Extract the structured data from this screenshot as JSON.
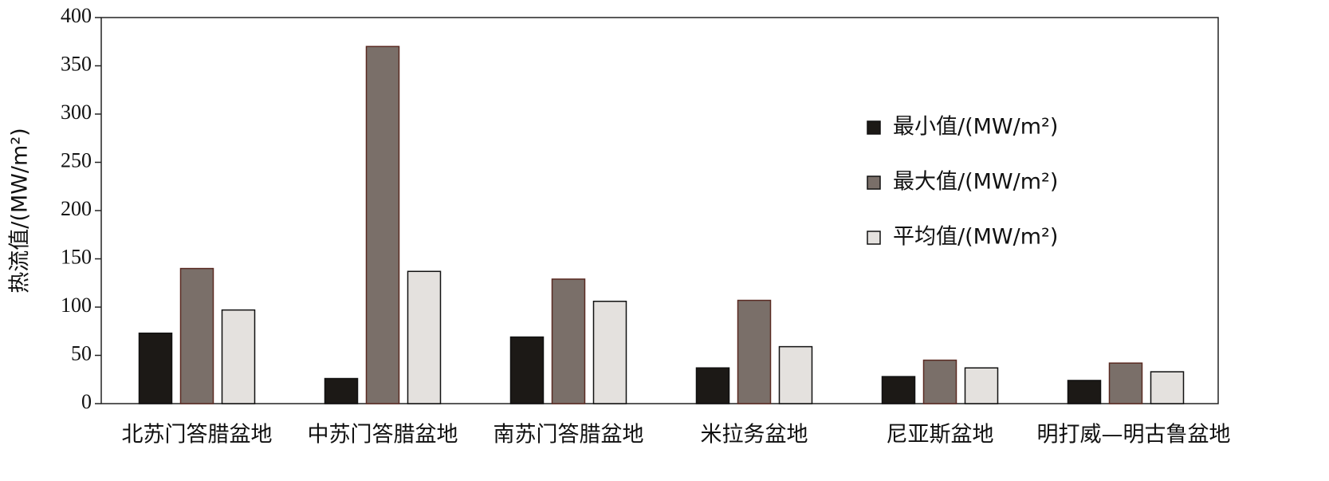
{
  "chart_data": {
    "type": "bar",
    "y_label": "热流值/(MW/m²)",
    "categories": [
      "北苏门答腊盆地",
      "中苏门答腊盆地",
      "南苏门答腊盆地",
      "米拉务盆地",
      "尼亚斯盆地",
      "明打威—明古鲁盆地"
    ],
    "series": [
      {
        "name": "最小值/(MW/m²)",
        "color": "#1c1916",
        "values": [
          73,
          26,
          69,
          37,
          28,
          24
        ]
      },
      {
        "name": "最大值/(MW/m²)",
        "color": "#7a6f69",
        "values": [
          140,
          370,
          129,
          107,
          45,
          42
        ]
      },
      {
        "name": "平均值/(MW/m²)",
        "color": "#e4e1de",
        "values": [
          97,
          137,
          106,
          59,
          37,
          33
        ]
      }
    ],
    "ylim": [
      0,
      400
    ],
    "yticks": [
      0,
      50,
      100,
      150,
      200,
      250,
      300,
      350,
      400
    ],
    "grid": false
  }
}
